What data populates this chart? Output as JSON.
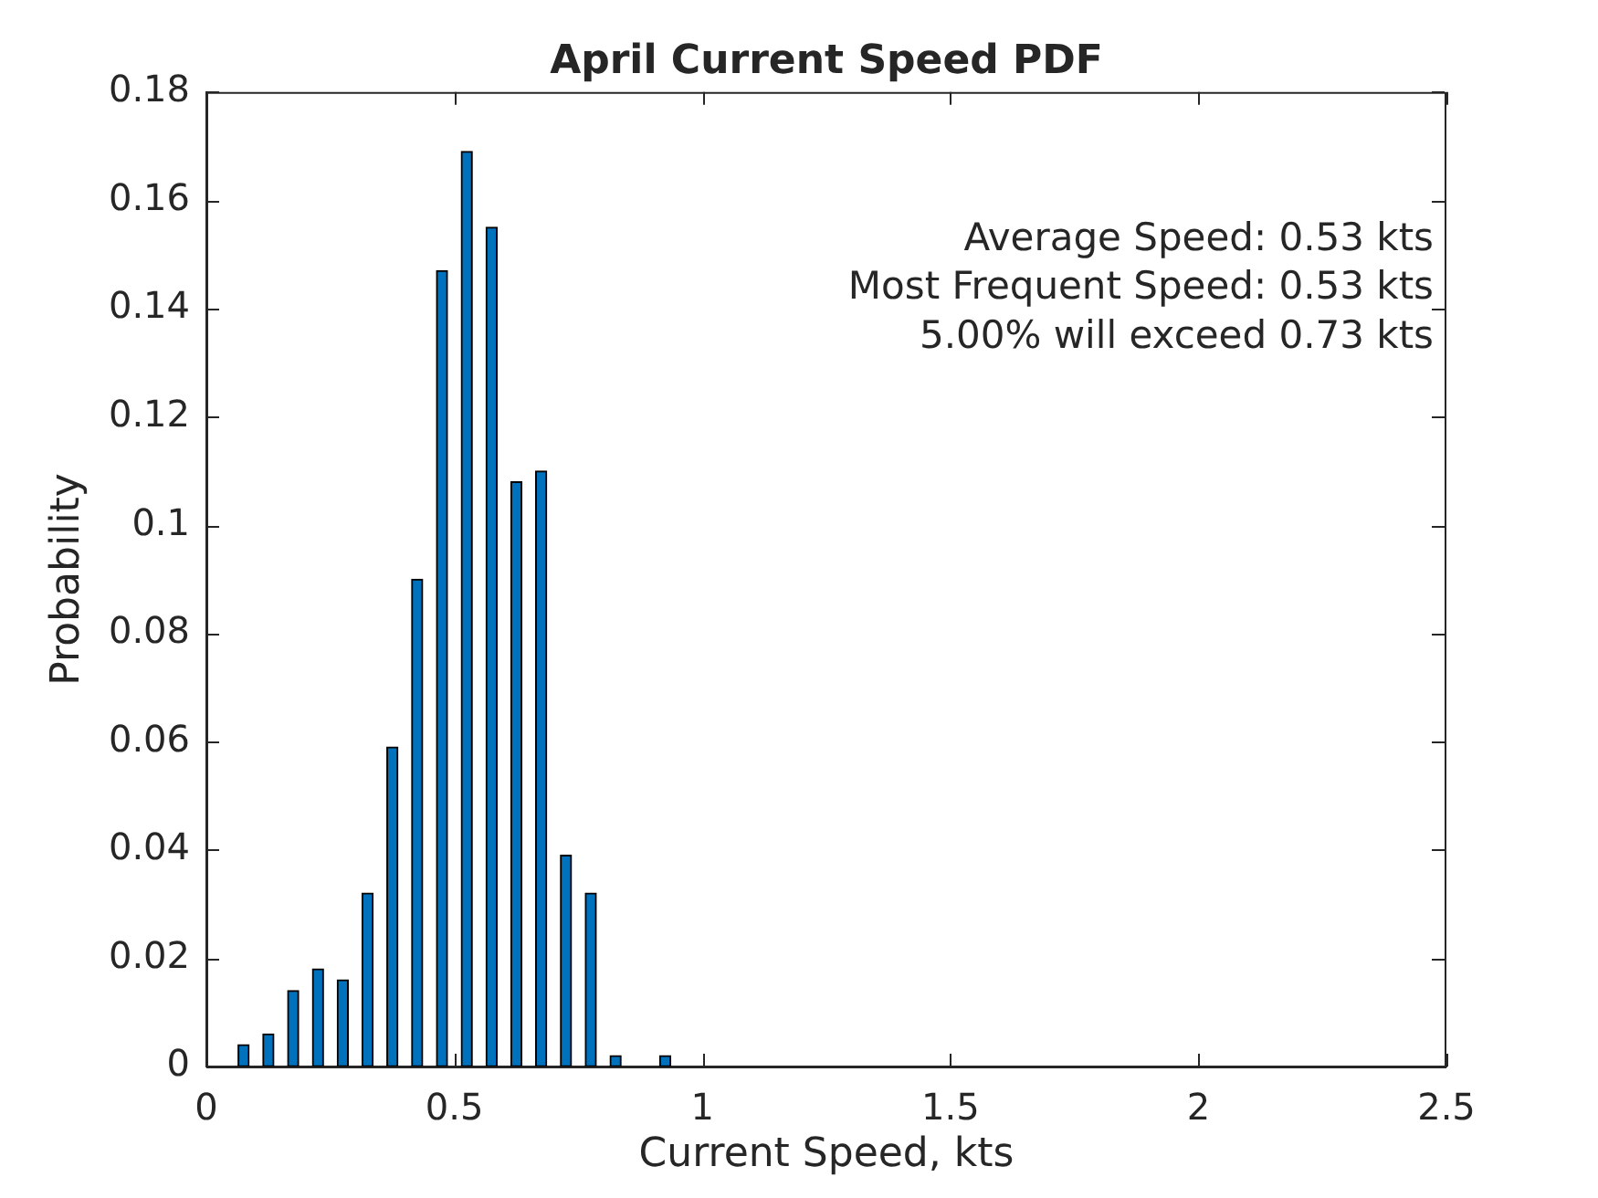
{
  "chart_data": {
    "type": "bar",
    "title": "April Current Speed PDF",
    "xlabel": "Current Speed, kts",
    "ylabel": "Probability",
    "x": [
      0.075,
      0.125,
      0.175,
      0.225,
      0.275,
      0.325,
      0.375,
      0.425,
      0.475,
      0.525,
      0.575,
      0.625,
      0.675,
      0.725,
      0.775,
      0.825,
      0.925
    ],
    "values": [
      0.004,
      0.006,
      0.014,
      0.018,
      0.016,
      0.032,
      0.059,
      0.09,
      0.147,
      0.169,
      0.155,
      0.108,
      0.11,
      0.039,
      0.032,
      0.002,
      0.002
    ],
    "color": "#0072bd",
    "xlim": [
      0,
      2.5
    ],
    "xticks": [
      0,
      0.5,
      1,
      1.5,
      2,
      2.5
    ],
    "ylim": [
      0,
      0.18
    ],
    "yticks": [
      0,
      0.02,
      0.04,
      0.06,
      0.08,
      0.1,
      0.12,
      0.14,
      0.16,
      0.18
    ],
    "annotations": [
      "Average Speed: 0.53 kts",
      "Most Frequent Speed: 0.53 kts",
      "5.00% will exceed 0.73 kts"
    ]
  }
}
